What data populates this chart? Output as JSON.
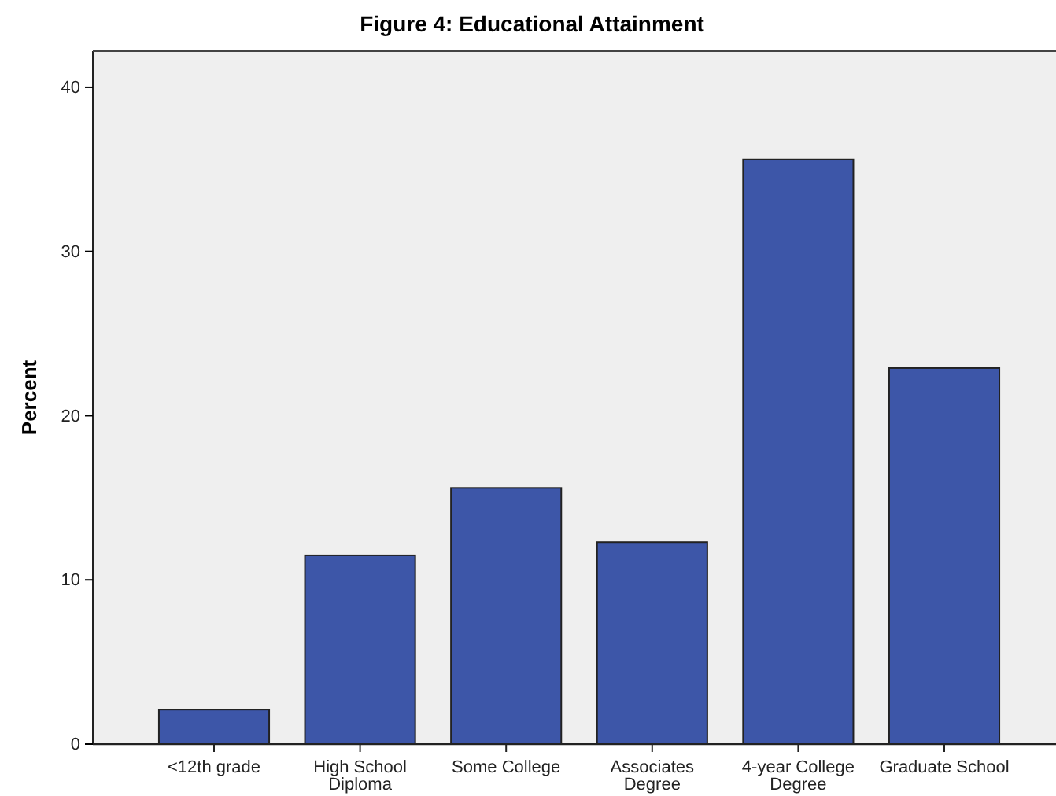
{
  "chart_data": {
    "type": "bar",
    "title": "Figure 4: Educational Attainment",
    "ylabel": "Percent",
    "categories": [
      "<12th grade",
      "High School Diploma",
      "Some College",
      "Associates Degree",
      "4-year College Degree",
      "Graduate School"
    ],
    "values": [
      2.1,
      11.5,
      15.6,
      12.3,
      35.6,
      22.9
    ],
    "color": "#3d56a8",
    "ylim": [
      0,
      42.2
    ],
    "yticks": [
      0,
      10,
      20,
      30,
      40
    ],
    "grid": false
  }
}
